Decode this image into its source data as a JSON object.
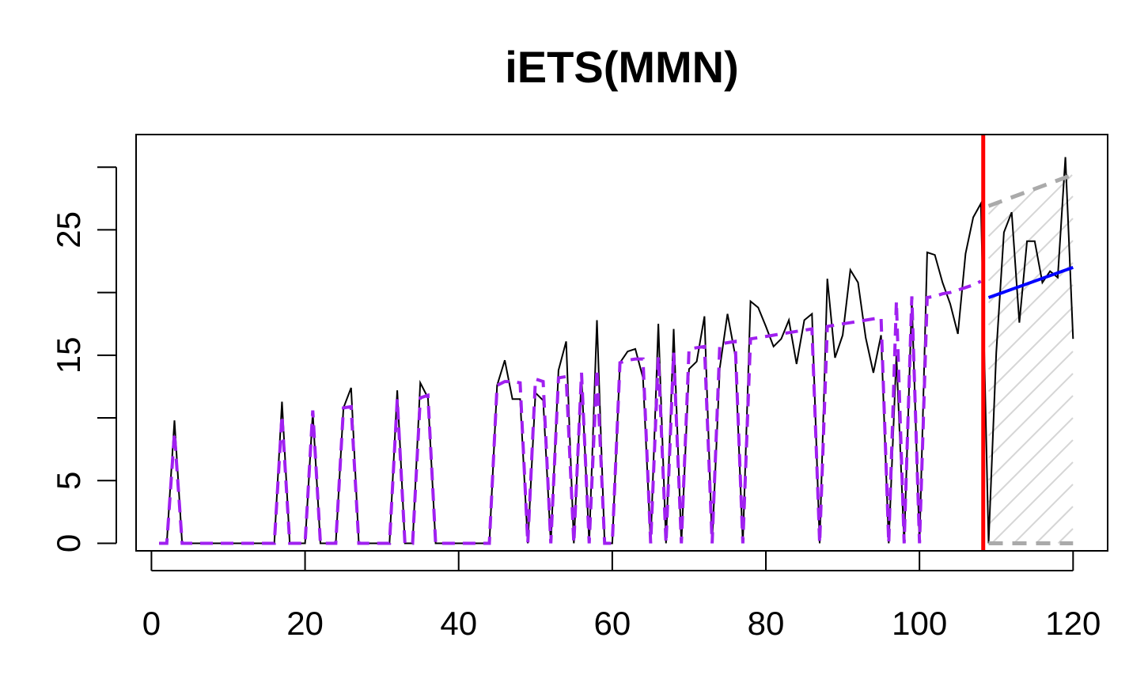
{
  "chart_data": {
    "type": "line",
    "title": "iETS(MMN)",
    "xlabel": "",
    "ylabel": "",
    "xlim": [
      -2,
      124.5
    ],
    "ylim": [
      -0.6,
      32.6
    ],
    "x_ticks": [
      0,
      20,
      40,
      60,
      80,
      100,
      120
    ],
    "y_ticks": [
      0,
      5,
      15,
      25
    ],
    "y_tick_marks": [
      0,
      5,
      10,
      15,
      20,
      25,
      30
    ],
    "holdout_start": 108.3,
    "grid": false,
    "legend": "none",
    "colors": {
      "actuals": "#000000",
      "fitted": "#a020f0",
      "forecast": "#0000ff",
      "interval": "#aaaaaa",
      "holdout_line": "#ff0000",
      "hatch": "#d6d6d6"
    },
    "series": [
      {
        "role": "actuals",
        "x": [
          1,
          2,
          3,
          4,
          5,
          6,
          7,
          8,
          9,
          10,
          11,
          12,
          13,
          14,
          15,
          16,
          17,
          18,
          19,
          20,
          21,
          22,
          23,
          24,
          25,
          26,
          27,
          28,
          29,
          30,
          31,
          32,
          33,
          34,
          35,
          36,
          37,
          38,
          39,
          40,
          41,
          42,
          43,
          44,
          45,
          46,
          47,
          48,
          49,
          50,
          51,
          52,
          53,
          54,
          55,
          56,
          57,
          58,
          59,
          60,
          61,
          62,
          63,
          64,
          65,
          66,
          67,
          68,
          69,
          70,
          71,
          72,
          73,
          74,
          75,
          76,
          77,
          78,
          79,
          80,
          81,
          82,
          83,
          84,
          85,
          86,
          87,
          88,
          89,
          90,
          91,
          92,
          93,
          94,
          95,
          96,
          97,
          98,
          99,
          100,
          101,
          102,
          103,
          104,
          105,
          106,
          107,
          108,
          109,
          110,
          111,
          112,
          113,
          114,
          115,
          116,
          117,
          118,
          119,
          120
        ],
        "y": [
          0,
          0,
          9.8,
          0,
          0,
          0,
          0,
          0,
          0,
          0,
          0,
          0,
          0,
          0,
          0,
          0,
          11.3,
          0,
          0,
          0,
          10.4,
          0,
          0,
          0,
          10.8,
          12.4,
          0,
          0,
          0,
          0,
          0,
          12.2,
          0,
          0,
          12.8,
          11.6,
          0,
          0,
          0,
          0,
          0,
          0,
          0,
          0,
          12.6,
          14.6,
          11.5,
          11.5,
          0,
          12.0,
          11.4,
          0,
          13.8,
          16.1,
          0,
          13.3,
          0,
          17.8,
          0,
          0,
          14.4,
          15.3,
          15.5,
          13.2,
          0,
          17.5,
          0,
          17.1,
          0,
          13.9,
          14.5,
          18.1,
          0,
          14.0,
          18.3,
          15.0,
          0,
          19.3,
          18.8,
          17.3,
          15.7,
          16.3,
          17.8,
          14.3,
          17.8,
          18.3,
          0,
          21.1,
          14.8,
          16.6,
          21.8,
          20.8,
          16.4,
          13.6,
          16.6,
          0,
          15.0,
          0,
          19.4,
          0,
          23.2,
          23.0,
          20.8,
          19.1,
          16.7,
          23.1,
          26.0,
          27.1,
          0,
          15.2,
          24.8,
          26.4,
          17.6,
          24.1,
          24.1,
          20.8,
          21.7,
          21.2,
          30.8,
          16.3
        ]
      },
      {
        "role": "fitted",
        "x": [
          1,
          2,
          3,
          4,
          5,
          6,
          7,
          8,
          9,
          10,
          11,
          12,
          13,
          14,
          15,
          16,
          17,
          18,
          19,
          20,
          21,
          22,
          23,
          24,
          25,
          26,
          27,
          28,
          29,
          30,
          31,
          32,
          33,
          34,
          35,
          36,
          37,
          38,
          39,
          40,
          41,
          42,
          43,
          44,
          45,
          46,
          47,
          48,
          49,
          50,
          51,
          52,
          53,
          54,
          55,
          56,
          57,
          58,
          59,
          60,
          61,
          62,
          63,
          64,
          65,
          66,
          67,
          68,
          69,
          70,
          71,
          72,
          73,
          74,
          75,
          76,
          77,
          78,
          79,
          80,
          81,
          82,
          83,
          84,
          85,
          86,
          87,
          88,
          89,
          90,
          91,
          92,
          93,
          94,
          95,
          96,
          97,
          98,
          99,
          100,
          101,
          102,
          103,
          104,
          105,
          106,
          107,
          108
        ],
        "y": [
          0,
          0,
          8.8,
          0,
          0,
          0,
          0,
          0,
          0,
          0,
          0,
          0,
          0,
          0,
          0,
          0,
          10.2,
          0,
          0,
          0,
          10.6,
          0,
          0,
          0,
          10.8,
          10.9,
          0,
          0,
          0,
          0,
          0,
          11.5,
          0,
          0,
          11.6,
          11.8,
          0,
          0,
          0,
          0,
          0,
          0,
          0,
          0,
          12.6,
          12.9,
          12.9,
          12.8,
          0,
          13.1,
          12.9,
          0,
          13.2,
          13.3,
          0,
          13.6,
          0,
          13.9,
          0,
          0,
          14.4,
          14.6,
          14.7,
          14.7,
          0,
          14.9,
          0,
          15.2,
          0,
          15.5,
          15.6,
          15.7,
          0,
          15.9,
          16.0,
          16.1,
          0,
          16.3,
          16.4,
          16.5,
          16.6,
          16.7,
          16.8,
          16.9,
          17.0,
          17.1,
          0,
          17.3,
          17.4,
          17.5,
          17.6,
          17.7,
          17.8,
          17.9,
          18.0,
          0,
          19.3,
          0,
          19.7,
          0,
          19.6,
          19.7,
          19.9,
          20.0,
          20.2,
          20.4,
          20.6,
          20.9
        ]
      },
      {
        "role": "forecast",
        "x": [
          109,
          120
        ],
        "y": [
          19.6,
          22.0
        ]
      },
      {
        "role": "upper-interval",
        "x": [
          109,
          120
        ],
        "y": [
          26.9,
          29.4
        ]
      },
      {
        "role": "lower-interval",
        "x": [
          109,
          120
        ],
        "y": [
          0,
          0
        ]
      }
    ]
  }
}
